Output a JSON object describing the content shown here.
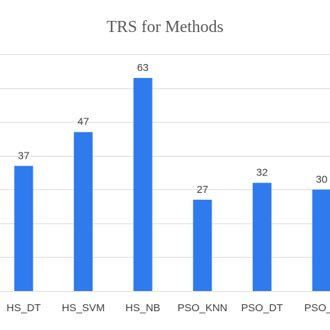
{
  "chart_data": {
    "type": "bar",
    "title": "TRS for Methods",
    "xlabel": "",
    "ylabel": "",
    "categories": [
      "HS_DT",
      "HS_SVM",
      "HS_NB",
      "PSO_KNN",
      "PSO_DT",
      "PSO_SVM"
    ],
    "tick_labels": [
      "HS_DT",
      "HS_SVM",
      "HS_NB",
      "PSO_KNN",
      "PSO_DT",
      "PSO_S"
    ],
    "values": [
      37,
      47,
      63,
      27,
      32,
      30
    ],
    "data_labels": [
      "37",
      "47",
      "63",
      "27",
      "32",
      "30"
    ],
    "ylim": [
      0,
      70
    ],
    "y_gridline_step": 10,
    "grid": true,
    "legend": "none",
    "colors": {
      "bar": "#2f7bed",
      "grid": "#d9d9d9",
      "title": "#595959",
      "text": "#404040"
    }
  }
}
